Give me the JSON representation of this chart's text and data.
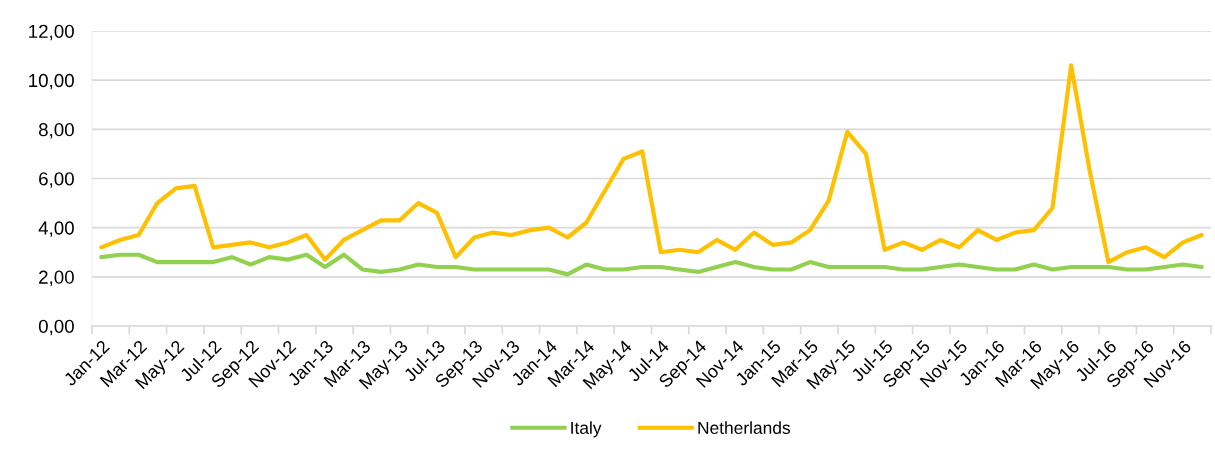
{
  "chart_data": {
    "type": "line",
    "categories": [
      "Jan-12",
      null,
      "Mar-12",
      null,
      "May-12",
      null,
      "Jul-12",
      null,
      "Sep-12",
      null,
      "Nov-12",
      null,
      "Jan-13",
      null,
      "Mar-13",
      null,
      "May-13",
      null,
      "Jul-13",
      null,
      "Sep-13",
      null,
      "Nov-13",
      null,
      "Jan-14",
      null,
      "Mar-14",
      null,
      "May-14",
      null,
      "Jul-14",
      null,
      "Sep-14",
      null,
      "Nov-14",
      null,
      "Jan-15",
      null,
      "Mar-15",
      null,
      "May-15",
      null,
      "Jul-15",
      null,
      "Sep-15",
      null,
      "Nov-15",
      null,
      "Jan-16",
      null,
      "Mar-16",
      null,
      "May-16",
      null,
      "Jul-16",
      null,
      "Sep-16",
      null,
      "Nov-16",
      null
    ],
    "series": [
      {
        "name": "Italy",
        "color": "#92d050",
        "values": [
          2.8,
          2.9,
          2.9,
          2.6,
          2.6,
          2.6,
          2.6,
          2.8,
          2.5,
          2.8,
          2.7,
          2.9,
          2.4,
          2.9,
          2.3,
          2.2,
          2.3,
          2.5,
          2.4,
          2.4,
          2.3,
          2.3,
          2.3,
          2.3,
          2.3,
          2.1,
          2.5,
          2.3,
          2.3,
          2.4,
          2.4,
          2.3,
          2.2,
          2.4,
          2.6,
          2.4,
          2.3,
          2.3,
          2.6,
          2.4,
          2.4,
          2.4,
          2.4,
          2.3,
          2.3,
          2.4,
          2.5,
          2.4,
          2.3,
          2.3,
          2.5,
          2.3,
          2.4,
          2.4,
          2.4,
          2.3,
          2.3,
          2.4,
          2.5,
          2.4
        ]
      },
      {
        "name": "Netherlands",
        "color": "#ffc000",
        "values": [
          3.2,
          3.5,
          3.7,
          5.0,
          5.6,
          5.7,
          3.2,
          3.3,
          3.4,
          3.2,
          3.4,
          3.7,
          2.7,
          3.5,
          3.9,
          4.3,
          4.3,
          5.0,
          4.6,
          2.8,
          3.6,
          3.8,
          3.7,
          3.9,
          4.0,
          3.6,
          4.2,
          5.5,
          6.8,
          7.1,
          3.0,
          3.1,
          3.0,
          3.5,
          3.1,
          3.8,
          3.3,
          3.4,
          3.9,
          5.1,
          7.9,
          7.0,
          3.1,
          3.4,
          3.1,
          3.5,
          3.2,
          3.9,
          3.5,
          3.8,
          3.9,
          4.8,
          10.6,
          6.3,
          2.6,
          3.0,
          3.2,
          2.8,
          3.4,
          3.7
        ]
      }
    ],
    "ylim": [
      0,
      12
    ],
    "yticks": [
      {
        "value": 0,
        "label": "0,00"
      },
      {
        "value": 2,
        "label": "2,00"
      },
      {
        "value": 4,
        "label": "4,00"
      },
      {
        "value": 6,
        "label": "6,00"
      },
      {
        "value": 8,
        "label": "8,00"
      },
      {
        "value": 10,
        "label": "10,00"
      },
      {
        "value": 12,
        "label": "12,00"
      }
    ],
    "grid": "y",
    "legend": "bottom",
    "line_style": "solid"
  }
}
